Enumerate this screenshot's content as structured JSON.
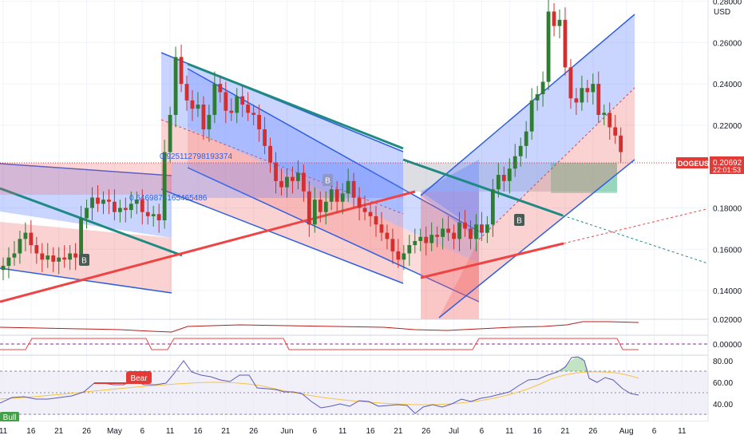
{
  "currency_label": "USD",
  "symbol": "DOGEUSD",
  "last_price": "0.20692",
  "countdown": "22:01:53",
  "price_axis": {
    "ticks": [
      {
        "v": 0.28,
        "label": "0.28000"
      },
      {
        "v": 0.26,
        "label": "0.26000"
      },
      {
        "v": 0.24,
        "label": "0.24000"
      },
      {
        "v": 0.22,
        "label": "0.22000"
      },
      {
        "v": 0.18,
        "label": "0.18000"
      },
      {
        "v": 0.16,
        "label": "0.16000"
      },
      {
        "v": 0.14,
        "label": "0.14000"
      }
    ]
  },
  "indicator_axis": {
    "upper_label": "0.02000",
    "zero_label": "0.00000",
    "rsi_ticks": [
      "80.00",
      "60.00",
      "40.00"
    ]
  },
  "time_axis": [
    {
      "label": "11",
      "day": 0
    },
    {
      "label": "16",
      "day": 5
    },
    {
      "label": "21",
      "day": 10
    },
    {
      "label": "26",
      "day": 15
    },
    {
      "label": "May",
      "day": 20
    },
    {
      "label": "6",
      "day": 25
    },
    {
      "label": "11",
      "day": 30
    },
    {
      "label": "16",
      "day": 35
    },
    {
      "label": "21",
      "day": 40
    },
    {
      "label": "26",
      "day": 45
    },
    {
      "label": "Jun",
      "day": 51
    },
    {
      "label": "6",
      "day": 56
    },
    {
      "label": "11",
      "day": 61
    },
    {
      "label": "16",
      "day": 66
    },
    {
      "label": "21",
      "day": 71
    },
    {
      "label": "26",
      "day": 76
    },
    {
      "label": "Jul",
      "day": 81
    },
    {
      "label": "6",
      "day": 86
    },
    {
      "label": "11",
      "day": 91
    },
    {
      "label": "16",
      "day": 96
    },
    {
      "label": "21",
      "day": 101
    },
    {
      "label": "26",
      "day": 106
    },
    {
      "label": "Aug",
      "day": 112
    },
    {
      "label": "6",
      "day": 117
    },
    {
      "label": "11",
      "day": 122
    }
  ],
  "annotations": {
    "fib_upper": "0.925112798193374",
    "fib_lower": "0.6469874165465486",
    "bear_label": "Bear",
    "bull_label": "Bull",
    "b_marker": "B"
  },
  "colors": {
    "up": "#2e7d32",
    "down": "#d32f2f",
    "channel_blue": "#2f5fe0",
    "teal_line": "#1f8a84",
    "red_line": "#ef4444",
    "price_tag": "#e53935"
  },
  "chart_data": {
    "type": "candlestick",
    "symbol": "DOGEUSD",
    "x_unit": "days from Apr 11",
    "y_range": [
      0.13,
      0.29
    ],
    "close": [
      0.152,
      0.156,
      0.158,
      0.165,
      0.168,
      0.162,
      0.158,
      0.155,
      0.157,
      0.154,
      0.156,
      0.155,
      0.158,
      0.156,
      0.175,
      0.18,
      0.185,
      0.182,
      0.184,
      0.183,
      0.178,
      0.18,
      0.179,
      0.182,
      0.184,
      0.178,
      0.176,
      0.177,
      0.174,
      0.207,
      0.225,
      0.253,
      0.24,
      0.232,
      0.228,
      0.23,
      0.218,
      0.225,
      0.24,
      0.236,
      0.227,
      0.226,
      0.234,
      0.23,
      0.226,
      0.225,
      0.218,
      0.21,
      0.202,
      0.193,
      0.19,
      0.195,
      0.193,
      0.197,
      0.188,
      0.172,
      0.184,
      0.178,
      0.183,
      0.189,
      0.183,
      0.187,
      0.193,
      0.185,
      0.18,
      0.178,
      0.176,
      0.172,
      0.168,
      0.165,
      0.159,
      0.155,
      0.158,
      0.162,
      0.164,
      0.166,
      0.163,
      0.167,
      0.166,
      0.17,
      0.168,
      0.165,
      0.173,
      0.17,
      0.165,
      0.172,
      0.168,
      0.172,
      0.189,
      0.196,
      0.193,
      0.199,
      0.205,
      0.21,
      0.217,
      0.232,
      0.235,
      0.241,
      0.275,
      0.268,
      0.271,
      0.248,
      0.233,
      0.231,
      0.238,
      0.236,
      0.24,
      0.225,
      0.226,
      0.219,
      0.215,
      0.207
    ]
  }
}
